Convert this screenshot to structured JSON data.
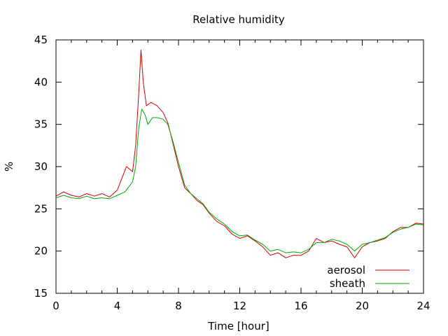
{
  "chart_data": {
    "type": "line",
    "title": "Relative humidity",
    "xlabel": "Time [hour]",
    "ylabel": "%",
    "xlim": [
      0,
      24
    ],
    "ylim": [
      15,
      45
    ],
    "xticks": [
      0,
      4,
      8,
      12,
      16,
      20,
      24
    ],
    "yticks": [
      15,
      20,
      25,
      30,
      35,
      40,
      45
    ],
    "grid": false,
    "legend_position": "bottom-right",
    "series": [
      {
        "name": "aerosol",
        "color": "#cc0000",
        "points": [
          [
            0,
            26.5
          ],
          [
            0.5,
            27.0
          ],
          [
            1.0,
            26.6
          ],
          [
            1.5,
            26.4
          ],
          [
            2.0,
            26.8
          ],
          [
            2.5,
            26.5
          ],
          [
            3.0,
            26.8
          ],
          [
            3.5,
            26.4
          ],
          [
            4.0,
            27.2
          ],
          [
            4.3,
            28.6
          ],
          [
            4.6,
            30.0
          ],
          [
            5.0,
            29.4
          ],
          [
            5.2,
            32.5
          ],
          [
            5.4,
            38.5
          ],
          [
            5.55,
            43.8
          ],
          [
            5.7,
            40.0
          ],
          [
            5.9,
            37.2
          ],
          [
            6.2,
            37.6
          ],
          [
            6.6,
            37.2
          ],
          [
            7.0,
            36.4
          ],
          [
            7.3,
            35.2
          ],
          [
            7.6,
            33.0
          ],
          [
            8.0,
            30.0
          ],
          [
            8.4,
            27.5
          ],
          [
            8.8,
            26.8
          ],
          [
            9.2,
            26.0
          ],
          [
            9.6,
            25.5
          ],
          [
            10.0,
            24.5
          ],
          [
            10.5,
            23.5
          ],
          [
            11.0,
            23.0
          ],
          [
            11.5,
            22.0
          ],
          [
            12.0,
            21.5
          ],
          [
            12.5,
            21.8
          ],
          [
            13.0,
            21.2
          ],
          [
            13.5,
            20.5
          ],
          [
            14.0,
            19.5
          ],
          [
            14.5,
            19.8
          ],
          [
            15.0,
            19.2
          ],
          [
            15.5,
            19.5
          ],
          [
            16.0,
            19.5
          ],
          [
            16.5,
            20.0
          ],
          [
            17.0,
            21.5
          ],
          [
            17.5,
            21.0
          ],
          [
            18.0,
            21.2
          ],
          [
            18.5,
            20.8
          ],
          [
            19.0,
            20.5
          ],
          [
            19.5,
            19.2
          ],
          [
            20.0,
            20.5
          ],
          [
            20.5,
            21.0
          ],
          [
            21.0,
            21.2
          ],
          [
            21.5,
            21.5
          ],
          [
            22.0,
            22.3
          ],
          [
            22.5,
            22.8
          ],
          [
            23.0,
            22.8
          ],
          [
            23.5,
            23.3
          ],
          [
            24.0,
            23.2
          ]
        ]
      },
      {
        "name": "sheath",
        "color": "#00aa00",
        "points": [
          [
            0,
            26.3
          ],
          [
            0.5,
            26.6
          ],
          [
            1.0,
            26.3
          ],
          [
            1.5,
            26.2
          ],
          [
            2.0,
            26.5
          ],
          [
            2.5,
            26.2
          ],
          [
            3.0,
            26.3
          ],
          [
            3.5,
            26.2
          ],
          [
            4.0,
            26.6
          ],
          [
            4.5,
            27.0
          ],
          [
            5.0,
            28.2
          ],
          [
            5.2,
            30.0
          ],
          [
            5.4,
            34.5
          ],
          [
            5.6,
            36.8
          ],
          [
            5.8,
            36.2
          ],
          [
            6.0,
            35.0
          ],
          [
            6.3,
            35.8
          ],
          [
            6.6,
            35.8
          ],
          [
            7.0,
            35.6
          ],
          [
            7.3,
            35.0
          ],
          [
            7.6,
            33.2
          ],
          [
            8.0,
            30.5
          ],
          [
            8.4,
            27.8
          ],
          [
            8.8,
            26.8
          ],
          [
            9.2,
            26.2
          ],
          [
            9.6,
            25.6
          ],
          [
            10.0,
            24.6
          ],
          [
            10.5,
            23.8
          ],
          [
            11.0,
            23.2
          ],
          [
            11.5,
            22.3
          ],
          [
            12.0,
            21.8
          ],
          [
            12.5,
            21.9
          ],
          [
            13.0,
            21.3
          ],
          [
            13.5,
            20.8
          ],
          [
            14.0,
            20.0
          ],
          [
            14.5,
            20.2
          ],
          [
            15.0,
            19.8
          ],
          [
            15.5,
            19.9
          ],
          [
            16.0,
            19.8
          ],
          [
            16.5,
            20.2
          ],
          [
            17.0,
            21.0
          ],
          [
            17.5,
            21.0
          ],
          [
            18.0,
            21.4
          ],
          [
            18.5,
            21.2
          ],
          [
            19.0,
            20.8
          ],
          [
            19.5,
            20.0
          ],
          [
            20.0,
            20.8
          ],
          [
            20.5,
            21.0
          ],
          [
            21.0,
            21.3
          ],
          [
            21.5,
            21.6
          ],
          [
            22.0,
            22.2
          ],
          [
            22.5,
            22.6
          ],
          [
            23.0,
            22.8
          ],
          [
            23.5,
            23.2
          ],
          [
            24.0,
            23.1
          ]
        ]
      }
    ]
  }
}
